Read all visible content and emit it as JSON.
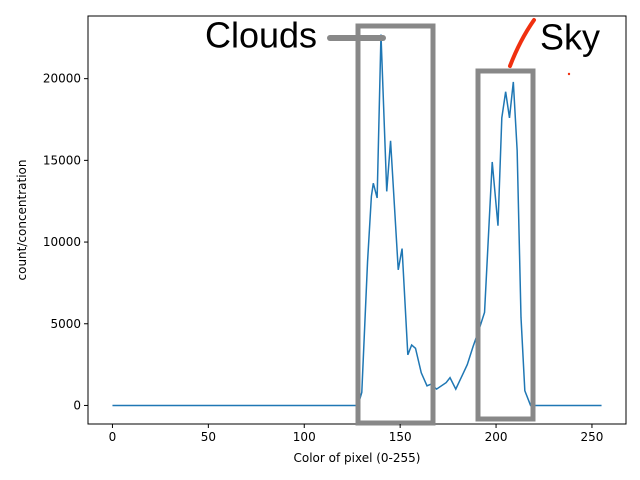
{
  "chart_data": {
    "type": "line",
    "xlabel": "Color of pixel (0-255)",
    "ylabel": "count/concentration",
    "annotations": [
      "Clouds",
      "Sky"
    ],
    "x": [
      0,
      128,
      130,
      133,
      135,
      136,
      138,
      140,
      143,
      145,
      149,
      151,
      154,
      156,
      158,
      161,
      164,
      166,
      169,
      174,
      176,
      179,
      183,
      185,
      188,
      191,
      194,
      198,
      201,
      203,
      205,
      207,
      209,
      211,
      213,
      215,
      218,
      255
    ],
    "series": [
      {
        "name": "count",
        "color": "#1f77b4",
        "values": [
          0,
          0,
          800,
          8800,
          12800,
          13600,
          12700,
          22700,
          13100,
          16200,
          8300,
          9600,
          3100,
          3700,
          3500,
          2000,
          1200,
          1300,
          1000,
          1400,
          1700,
          1000,
          2000,
          2500,
          3600,
          4600,
          5700,
          14900,
          11000,
          17600,
          19200,
          17600,
          19800,
          15600,
          5400,
          900,
          0,
          0
        ]
      }
    ],
    "xlim": [
      -12.75,
      267.75
    ],
    "ylim": [
      -1135,
      23835
    ],
    "xticks": [
      0,
      50,
      100,
      150,
      200,
      250
    ],
    "yticks": [
      0,
      5000,
      10000,
      15000,
      20000
    ]
  }
}
